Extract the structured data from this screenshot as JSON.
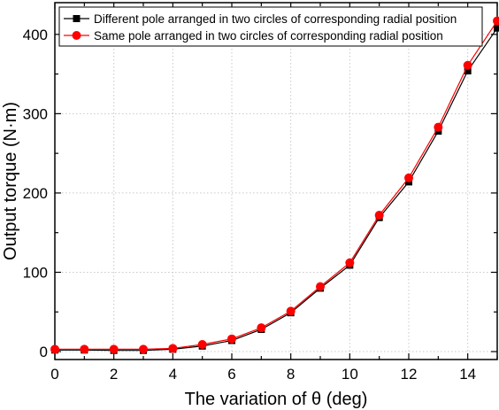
{
  "chart_data": {
    "type": "line",
    "xlabel": "The variation of θ (deg)",
    "ylabel": "Output torque (N·m)",
    "xlim": [
      0,
      15
    ],
    "ylim": [
      -10,
      440
    ],
    "x_ticks": [
      0,
      2,
      4,
      6,
      8,
      10,
      12,
      14
    ],
    "y_ticks": [
      0,
      100,
      200,
      300,
      400
    ],
    "grid": true,
    "legend_placement": "top-left",
    "x": [
      0,
      1,
      2,
      3,
      4,
      5,
      6,
      7,
      8,
      9,
      10,
      11,
      12,
      13,
      14,
      15
    ],
    "series": [
      {
        "name": "Different pole arranged in two circles of corresponding radial position",
        "marker": "square",
        "color": "#000000",
        "values": [
          2,
          2,
          1.5,
          1.5,
          3,
          7,
          14,
          28,
          49,
          80,
          109,
          169,
          214,
          278,
          354,
          408
        ]
      },
      {
        "name": "Same pole arranged in two circles of corresponding radial position",
        "marker": "circle",
        "color": "#ff0000",
        "values": [
          3,
          3,
          3,
          3,
          4,
          9,
          16,
          30,
          51,
          82,
          112,
          172,
          219,
          283,
          361,
          417
        ]
      }
    ]
  }
}
